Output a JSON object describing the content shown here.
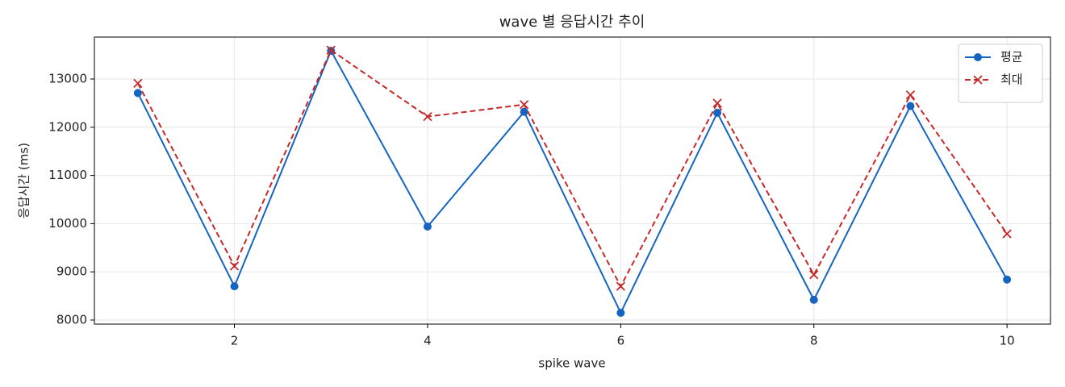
{
  "chart_data": {
    "type": "line",
    "title": "wave 별 응답시간 추이",
    "xlabel": "spike wave",
    "ylabel": "응답시간 (ms)",
    "x": [
      1,
      2,
      3,
      4,
      5,
      6,
      7,
      8,
      9,
      10
    ],
    "series": [
      {
        "name": "평균",
        "color": "#1565c0",
        "marker": "o",
        "linestyle": "solid",
        "values": [
          12710,
          8700,
          13585,
          9940,
          12320,
          8150,
          12300,
          8420,
          12440,
          8840
        ]
      },
      {
        "name": "최대",
        "color": "#c62828",
        "marker": "x",
        "linestyle": "dashed",
        "values": [
          12910,
          9120,
          13600,
          12220,
          12470,
          8700,
          12500,
          8940,
          12670,
          9790
        ]
      }
    ],
    "xlim": [
      0.55,
      10.45
    ],
    "xticks": [
      2,
      4,
      6,
      8,
      10
    ],
    "ylim": [
      7916,
      13870
    ],
    "yticks": [
      8000,
      9000,
      10000,
      11000,
      12000,
      13000
    ],
    "grid": true,
    "legend": "upper right"
  }
}
